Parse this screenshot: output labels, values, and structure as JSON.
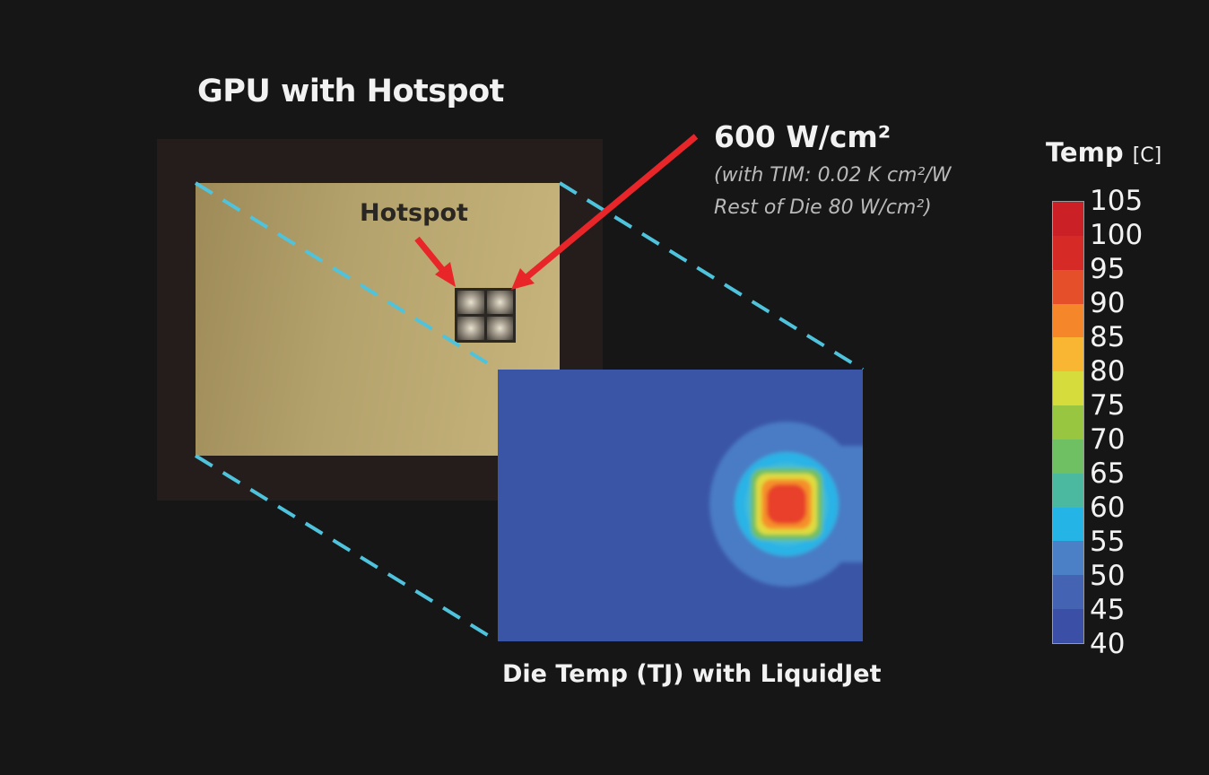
{
  "title": "GPU with Hotspot",
  "hotspot_label": "Hotspot",
  "power": {
    "value": "600 W/cm²",
    "note_line1": "(with TIM: 0.02 K cm²/W",
    "note_line2": "Rest of Die 80 W/cm²)"
  },
  "caption": "Die Temp (TJ) with LiquidJet",
  "colorbar": {
    "title": "Temp",
    "unit": "[C]",
    "ticks": [
      "105",
      "100",
      "95",
      "90",
      "85",
      "80",
      "75",
      "70",
      "65",
      "60",
      "55",
      "50",
      "45",
      "40"
    ],
    "band_colors_low_to_high": [
      "#3b4fa6",
      "#4563b3",
      "#4b7fc6",
      "#25b4e6",
      "#4bb8a0",
      "#6fbf63",
      "#98c640",
      "#d6dc3c",
      "#f9b632",
      "#f5862a",
      "#e5502a",
      "#d62a26",
      "#cc2027"
    ]
  },
  "colors": {
    "arrow": "#e8262a",
    "guide_lines": "#4fc3dc",
    "heatmap_background": "#3a55a6"
  }
}
